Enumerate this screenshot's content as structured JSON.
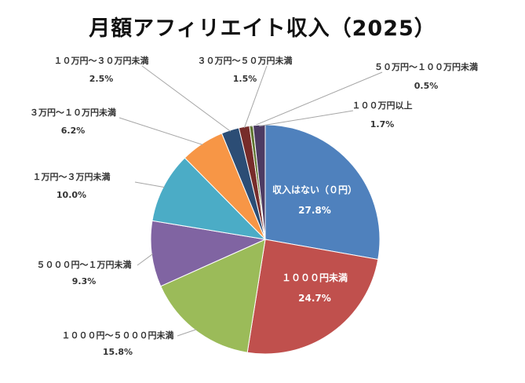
{
  "chart_data": {
    "type": "pie",
    "title": "月額アフィリエイト収入（2025）",
    "slices": [
      {
        "label": "収入はない（０円）",
        "percent_label": "27.8%",
        "value": 27.8,
        "color": "#4F81BD"
      },
      {
        "label": "１０００円未満",
        "percent_label": "24.7%",
        "value": 24.7,
        "color": "#C0504D"
      },
      {
        "label": "１０００円～５０００円未満",
        "percent_label": "15.8%",
        "value": 15.8,
        "color": "#9BBB59"
      },
      {
        "label": "５０００円～１万円未満",
        "percent_label": "9.3%",
        "value": 9.3,
        "color": "#8064A2"
      },
      {
        "label": "１万円～３万円未満",
        "percent_label": "10.0%",
        "value": 10.0,
        "color": "#4BACC6"
      },
      {
        "label": "３万円～１０万円未満",
        "percent_label": "6.2%",
        "value": 6.2,
        "color": "#F79646"
      },
      {
        "label": "１０万円～３０万円未満",
        "percent_label": "2.5%",
        "value": 2.5,
        "color": "#2C4D75"
      },
      {
        "label": "３０万円～５０万円未満",
        "percent_label": "1.5%",
        "value": 1.5,
        "color": "#772C2A"
      },
      {
        "label": "５０万円～１００万円未満",
        "percent_label": "0.5%",
        "value": 0.5,
        "color": "#5F7530"
      },
      {
        "label": "１００万円以上",
        "percent_label": "1.7%",
        "value": 1.7,
        "color": "#4D3B62"
      }
    ]
  }
}
